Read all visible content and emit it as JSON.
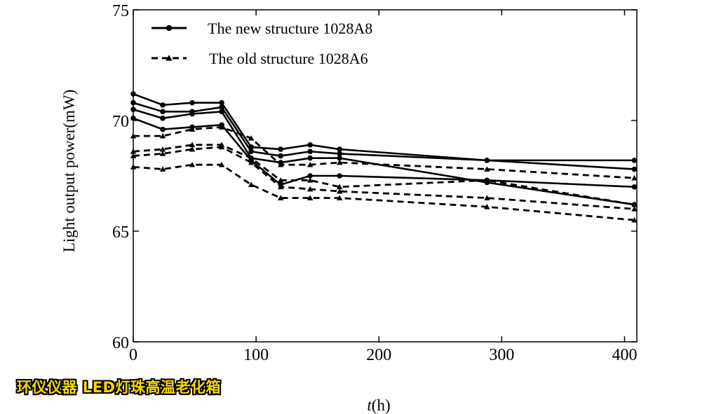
{
  "watermark": "环仪仪器 LED灯珠高温老化箱",
  "chart_data": {
    "type": "line",
    "xlabel_italic": "t",
    "xlabel_unit": "(h)",
    "ylabel": "Light output power(mW)",
    "xlim": [
      0,
      410
    ],
    "ylim": [
      60,
      75
    ],
    "xticks": [
      0,
      100,
      200,
      300,
      400
    ],
    "yticks": [
      60,
      65,
      70,
      75
    ],
    "legend": [
      {
        "label": "The new structure 1028A8",
        "style": "solid",
        "marker": "circle"
      },
      {
        "label": "The old structure 1028A6",
        "style": "dashed",
        "marker": "triangle"
      }
    ],
    "legend_position": "top-left",
    "grid": false,
    "series": [
      {
        "group": "new",
        "x": [
          0,
          24,
          48,
          72,
          96,
          120,
          144,
          168,
          288,
          408
        ],
        "y": [
          71.2,
          70.7,
          70.8,
          70.8,
          68.8,
          68.7,
          68.9,
          68.7,
          68.2,
          68.2
        ]
      },
      {
        "group": "new",
        "x": [
          0,
          24,
          48,
          72,
          96,
          120,
          144,
          168,
          288,
          408
        ],
        "y": [
          70.8,
          70.4,
          70.4,
          70.6,
          68.6,
          68.4,
          68.6,
          68.5,
          68.2,
          67.8
        ]
      },
      {
        "group": "new",
        "x": [
          0,
          24,
          48,
          72,
          96,
          120,
          144,
          168,
          288,
          408
        ],
        "y": [
          70.5,
          70.1,
          70.3,
          70.4,
          68.3,
          68.1,
          68.3,
          68.3,
          67.2,
          66.2
        ]
      },
      {
        "group": "new",
        "x": [
          0,
          24,
          48,
          72,
          96,
          120,
          144,
          168,
          288,
          408
        ],
        "y": [
          70.1,
          69.6,
          69.7,
          69.8,
          68.2,
          67.1,
          67.5,
          67.5,
          67.3,
          67.0
        ]
      },
      {
        "group": "old",
        "x": [
          0,
          24,
          48,
          72,
          96,
          120,
          144,
          168,
          288,
          408
        ],
        "y": [
          69.3,
          69.3,
          69.6,
          69.7,
          69.2,
          68.0,
          68.0,
          68.1,
          67.8,
          67.4
        ]
      },
      {
        "group": "old",
        "x": [
          0,
          24,
          48,
          72,
          96,
          120,
          144,
          168,
          288,
          408
        ],
        "y": [
          68.6,
          68.7,
          68.9,
          68.9,
          68.3,
          67.3,
          67.3,
          67.0,
          67.3,
          66.2
        ]
      },
      {
        "group": "old",
        "x": [
          0,
          24,
          48,
          72,
          96,
          120,
          144,
          168,
          288,
          408
        ],
        "y": [
          68.4,
          68.5,
          68.7,
          68.8,
          68.1,
          67.0,
          66.9,
          66.8,
          66.5,
          66.0
        ]
      },
      {
        "group": "old",
        "x": [
          0,
          24,
          48,
          72,
          96,
          120,
          144,
          168,
          288,
          408
        ],
        "y": [
          67.9,
          67.8,
          68.0,
          68.0,
          67.1,
          66.5,
          66.5,
          66.5,
          66.1,
          65.5
        ]
      }
    ]
  }
}
